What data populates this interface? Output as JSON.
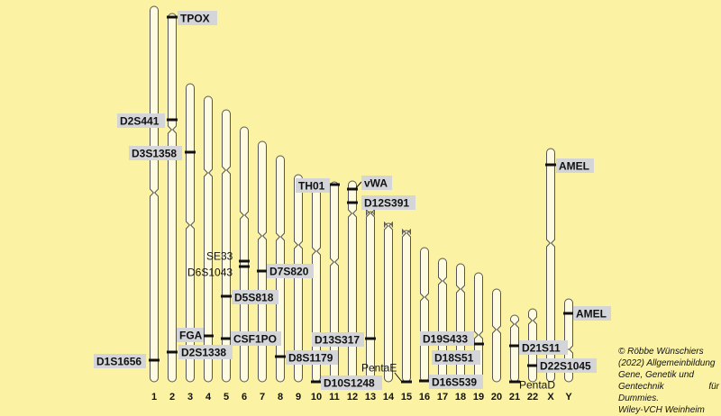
{
  "chromosomes": [
    {
      "id": "1",
      "label": "1"
    },
    {
      "id": "2",
      "label": "2"
    },
    {
      "id": "3",
      "label": "3"
    },
    {
      "id": "4",
      "label": "4"
    },
    {
      "id": "5",
      "label": "5"
    },
    {
      "id": "6",
      "label": "6"
    },
    {
      "id": "7",
      "label": "7"
    },
    {
      "id": "8",
      "label": "8"
    },
    {
      "id": "9",
      "label": "9"
    },
    {
      "id": "10",
      "label": "10"
    },
    {
      "id": "11",
      "label": "11"
    },
    {
      "id": "12",
      "label": "12"
    },
    {
      "id": "13",
      "label": "13"
    },
    {
      "id": "14",
      "label": "14"
    },
    {
      "id": "15",
      "label": "15"
    },
    {
      "id": "16",
      "label": "16"
    },
    {
      "id": "17",
      "label": "17"
    },
    {
      "id": "18",
      "label": "18"
    },
    {
      "id": "19",
      "label": "19"
    },
    {
      "id": "20",
      "label": "20"
    },
    {
      "id": "21",
      "label": "21"
    },
    {
      "id": "22",
      "label": "22"
    },
    {
      "id": "X",
      "label": "X"
    },
    {
      "id": "Y",
      "label": "Y"
    }
  ],
  "markers": [
    {
      "label": "TPOX",
      "chromosome": "2",
      "highlighted": true
    },
    {
      "label": "D2S441",
      "chromosome": "2",
      "highlighted": true
    },
    {
      "label": "D3S1358",
      "chromosome": "3",
      "highlighted": true
    },
    {
      "label": "TH01",
      "chromosome": "11",
      "highlighted": true
    },
    {
      "label": "vWA",
      "chromosome": "12",
      "highlighted": true
    },
    {
      "label": "D12S391",
      "chromosome": "12",
      "highlighted": true
    },
    {
      "label": "AMEL",
      "chromosome": "X",
      "highlighted": true
    },
    {
      "label": "SE33",
      "chromosome": "6",
      "highlighted": false
    },
    {
      "label": "D6S1043",
      "chromosome": "6",
      "highlighted": false
    },
    {
      "label": "D7S820",
      "chromosome": "7",
      "highlighted": true
    },
    {
      "label": "D5S818",
      "chromosome": "5",
      "highlighted": true
    },
    {
      "label": "AMEL",
      "chromosome": "Y",
      "highlighted": true
    },
    {
      "label": "FGA",
      "chromosome": "4",
      "highlighted": true
    },
    {
      "label": "CSF1PO",
      "chromosome": "5",
      "highlighted": true
    },
    {
      "label": "D13S317",
      "chromosome": "13",
      "highlighted": true
    },
    {
      "label": "D19S433",
      "chromosome": "19",
      "highlighted": true
    },
    {
      "label": "D21S11",
      "chromosome": "21",
      "highlighted": true
    },
    {
      "label": "D2S1338",
      "chromosome": "2",
      "highlighted": true
    },
    {
      "label": "D8S1179",
      "chromosome": "8",
      "highlighted": true
    },
    {
      "label": "D18S51",
      "chromosome": "18",
      "highlighted": true
    },
    {
      "label": "D1S1656",
      "chromosome": "1",
      "highlighted": true
    },
    {
      "label": "PentaE",
      "chromosome": "15",
      "highlighted": false
    },
    {
      "label": "D22S1045",
      "chromosome": "22",
      "highlighted": true
    },
    {
      "label": "D16S539",
      "chromosome": "16",
      "highlighted": true
    },
    {
      "label": "D10S1248",
      "chromosome": "10",
      "highlighted": true
    },
    {
      "label": "PentaD",
      "chromosome": "21",
      "highlighted": false
    }
  ],
  "credit": {
    "lines": [
      "© Röbbe Wünschiers",
      "(2022) Allgemeinbildung",
      "Gene, Genetik und",
      "Gentechnik für Dummies.",
      "Wiley-VCH Weinheim"
    ]
  },
  "colors": {
    "background": "#fbf3a3",
    "label_box": "#d3d5d8",
    "outline": "#555555",
    "band": "#111111"
  }
}
